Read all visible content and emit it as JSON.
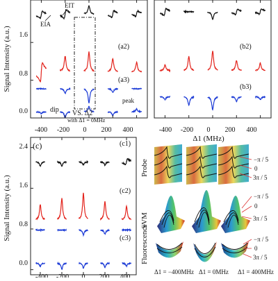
{
  "colors": {
    "black": "#111111",
    "red": "#e3231c",
    "blue": "#1c3bd6",
    "frame": "#222222"
  },
  "chart_data": [
    {
      "type": "line",
      "panel": "a",
      "ylabel": "Signal Intensity (a.u.)",
      "xticks": [
        -400,
        -200,
        0,
        200,
        400
      ],
      "yticks": [
        0.0,
        0.8,
        1.6
      ],
      "xlim": [
        -490,
        490
      ],
      "ylim": [
        0.0,
        2.5
      ],
      "series": [
        {
          "name": "a1",
          "color": "black",
          "offset": 2.2,
          "peaks": [
            {
              "x": -400,
              "kind": "disp",
              "h": 0.08
            },
            {
              "x": -200,
              "kind": "disp",
              "h": 0.1
            },
            {
              "x": 0,
              "kind": "peak",
              "h": 0.18
            },
            {
              "x": 200,
              "kind": "disp",
              "h": 0.08
            },
            {
              "x": 400,
              "kind": "disp",
              "h": 0.06
            }
          ]
        },
        {
          "name": "a2",
          "color": "red",
          "offset": 0.97,
          "peaks": [
            {
              "x": -400,
              "kind": "disp",
              "h": 0.22
            },
            {
              "x": -200,
              "kind": "peak",
              "h": 0.32
            },
            {
              "x": 0,
              "kind": "peak",
              "h": 0.42
            },
            {
              "x": 200,
              "kind": "peak",
              "h": 0.28
            },
            {
              "x": 400,
              "kind": "peak",
              "h": 0.2
            }
          ]
        },
        {
          "name": "a3",
          "color": "blue",
          "offset": 0.62,
          "peaks": [
            {
              "x": -200,
              "kind": "dip",
              "h": 0.1
            },
            {
              "x": 0,
              "kind": "dip",
              "h": 0.3
            },
            {
              "x": 200,
              "kind": "dip",
              "h": 0.08
            }
          ]
        },
        {
          "name": "",
          "color": "blue",
          "offset": 0.13,
          "peaks": [
            {
              "x": -400,
              "kind": "dip",
              "h": 0.04
            },
            {
              "x": -200,
              "kind": "dip",
              "h": 0.12
            },
            {
              "x": 0,
              "kind": "peak",
              "h": 0.12
            },
            {
              "x": 200,
              "kind": "dip",
              "h": 0.08
            },
            {
              "x": 400,
              "kind": "peak",
              "h": 0.06
            }
          ]
        }
      ],
      "labels": [
        "(a2)",
        "(a3)"
      ],
      "annotations": [
        "EIT",
        "EIA",
        "dip",
        "peak",
        "VS. Δ2",
        "with Δ1 = 0MHz"
      ]
    },
    {
      "type": "line",
      "panel": "b",
      "xlabel": "Δ1 (MHz)",
      "xticks": [
        -400,
        -200,
        0,
        200,
        400
      ],
      "xlim": [
        -490,
        490
      ],
      "ylim": [
        0.0,
        2.5
      ],
      "series": [
        {
          "name": "b1",
          "color": "black",
          "offset": 2.25,
          "peaks": [
            {
              "x": -400,
              "kind": "disp",
              "h": 0.08
            },
            {
              "x": 0,
              "kind": "dip",
              "h": 0.16
            },
            {
              "x": 200,
              "kind": "disp",
              "h": 0.06
            },
            {
              "x": 400,
              "kind": "disp",
              "h": 0.06
            }
          ]
        },
        {
          "name": "b2",
          "color": "red",
          "offset": 1.0,
          "peaks": [
            {
              "x": -400,
              "kind": "peak",
              "h": 0.12
            },
            {
              "x": -200,
              "kind": "peak",
              "h": 0.3
            },
            {
              "x": 0,
              "kind": "peak",
              "h": 0.42
            },
            {
              "x": 200,
              "kind": "peak",
              "h": 0.22
            },
            {
              "x": 400,
              "kind": "peak",
              "h": 0.16
            }
          ]
        },
        {
          "name": "b3",
          "color": "blue",
          "offset": 0.45,
          "peaks": [
            {
              "x": -400,
              "kind": "dip",
              "h": 0.06
            },
            {
              "x": -200,
              "kind": "dip",
              "h": 0.18
            },
            {
              "x": 0,
              "kind": "dip",
              "h": 0.28
            },
            {
              "x": 200,
              "kind": "dip",
              "h": 0.1
            },
            {
              "x": 400,
              "kind": "dip",
              "h": 0.06
            }
          ]
        }
      ],
      "labels": [
        "(b2)",
        "(b3)"
      ]
    },
    {
      "type": "line",
      "panel": "c",
      "ylabel": "Signal Intensity (a.u.)",
      "xticks": [
        -400,
        -200,
        0,
        200,
        400
      ],
      "yticks": [
        0.0,
        0.8,
        1.6,
        2.4
      ],
      "xlim": [
        -490,
        490
      ],
      "ylim": [
        -0.1,
        2.6
      ],
      "series": [
        {
          "name": "c1",
          "color": "black",
          "offset": 2.12,
          "peaks": [
            {
              "x": -400,
              "kind": "dip",
              "h": 0.08
            },
            {
              "x": -200,
              "kind": "dip",
              "h": 0.08
            },
            {
              "x": 0,
              "kind": "dip",
              "h": 0.06
            },
            {
              "x": 200,
              "kind": "dip",
              "h": 0.06
            },
            {
              "x": 400,
              "kind": "disp",
              "h": 0.06
            }
          ]
        },
        {
          "name": "c2",
          "color": "red",
          "offset": 0.98,
          "peaks": [
            {
              "x": -400,
              "kind": "peak",
              "h": 0.3
            },
            {
              "x": -200,
              "kind": "peak",
              "h": 0.42
            },
            {
              "x": 0,
              "kind": "peak",
              "h": 0.52
            },
            {
              "x": 200,
              "kind": "peak",
              "h": 0.36
            },
            {
              "x": 400,
              "kind": "peak",
              "h": 0.26
            }
          ]
        },
        {
          "name": "c3",
          "color": "blue",
          "offset": 0.78,
          "peaks": [
            {
              "x": 0,
              "kind": "dip",
              "h": 0.1
            },
            {
              "x": 200,
              "kind": "dip",
              "h": 0.08
            }
          ]
        },
        {
          "name": "",
          "color": "blue",
          "offset": 0.13,
          "peaks": [
            {
              "x": -400,
              "kind": "dip",
              "h": 0.06
            },
            {
              "x": -200,
              "kind": "dip",
              "h": 0.12
            },
            {
              "x": 0,
              "kind": "dip",
              "h": 0.1
            },
            {
              "x": 200,
              "kind": "dip",
              "h": 0.08
            },
            {
              "x": 400,
              "kind": "dip",
              "h": 0.06
            }
          ]
        }
      ],
      "labels": [
        "(c)",
        "(c1)",
        "(c2)",
        "(c3)"
      ]
    }
  ],
  "texts": {
    "a_ylabel": "Signal Intensity (a.u.)",
    "c_ylabel": "Signal Intensity (a.u.)",
    "b_xlabel": "Δ1 (MHz)",
    "ytick_top": "1.6",
    "ytick_mid": "0.8",
    "ytick_low": "0.0",
    "c_ytick_24": "2.4",
    "c_ytick_16": "1.6",
    "c_ytick_08": "0.8",
    "c_ytick_00": "0.0",
    "xt_m400": "-400",
    "xt_m200": "-200",
    "xt_0": "0",
    "xt_200": "200",
    "xt_400": "400",
    "lbl_a2": "(a2)",
    "lbl_a3": "(a3)",
    "lbl_b2": "(b2)",
    "lbl_b3": "(b3)",
    "lbl_c": "(c)",
    "lbl_c1": "(c1)",
    "lbl_c2": "(c2)",
    "lbl_c3": "(c3)",
    "ann_eit": "EIT",
    "ann_eia": "EIA",
    "ann_dip": "dip",
    "ann_peak": "peak",
    "ann_vs": "VS. Δ2",
    "ann_with": "with Δ1 = 0MHz",
    "row_probe": "Probe",
    "row_svm": "SVM",
    "row_fluor": "Fluorescence",
    "phase_neg": "−π / 5",
    "phase_zero": "0",
    "phase_pos": "3π / 5",
    "detune_left": "Δ1 = −400MHz",
    "detune_mid": "Δ1 = 0MHz",
    "detune_right": "Δ1 = 400MHz"
  }
}
